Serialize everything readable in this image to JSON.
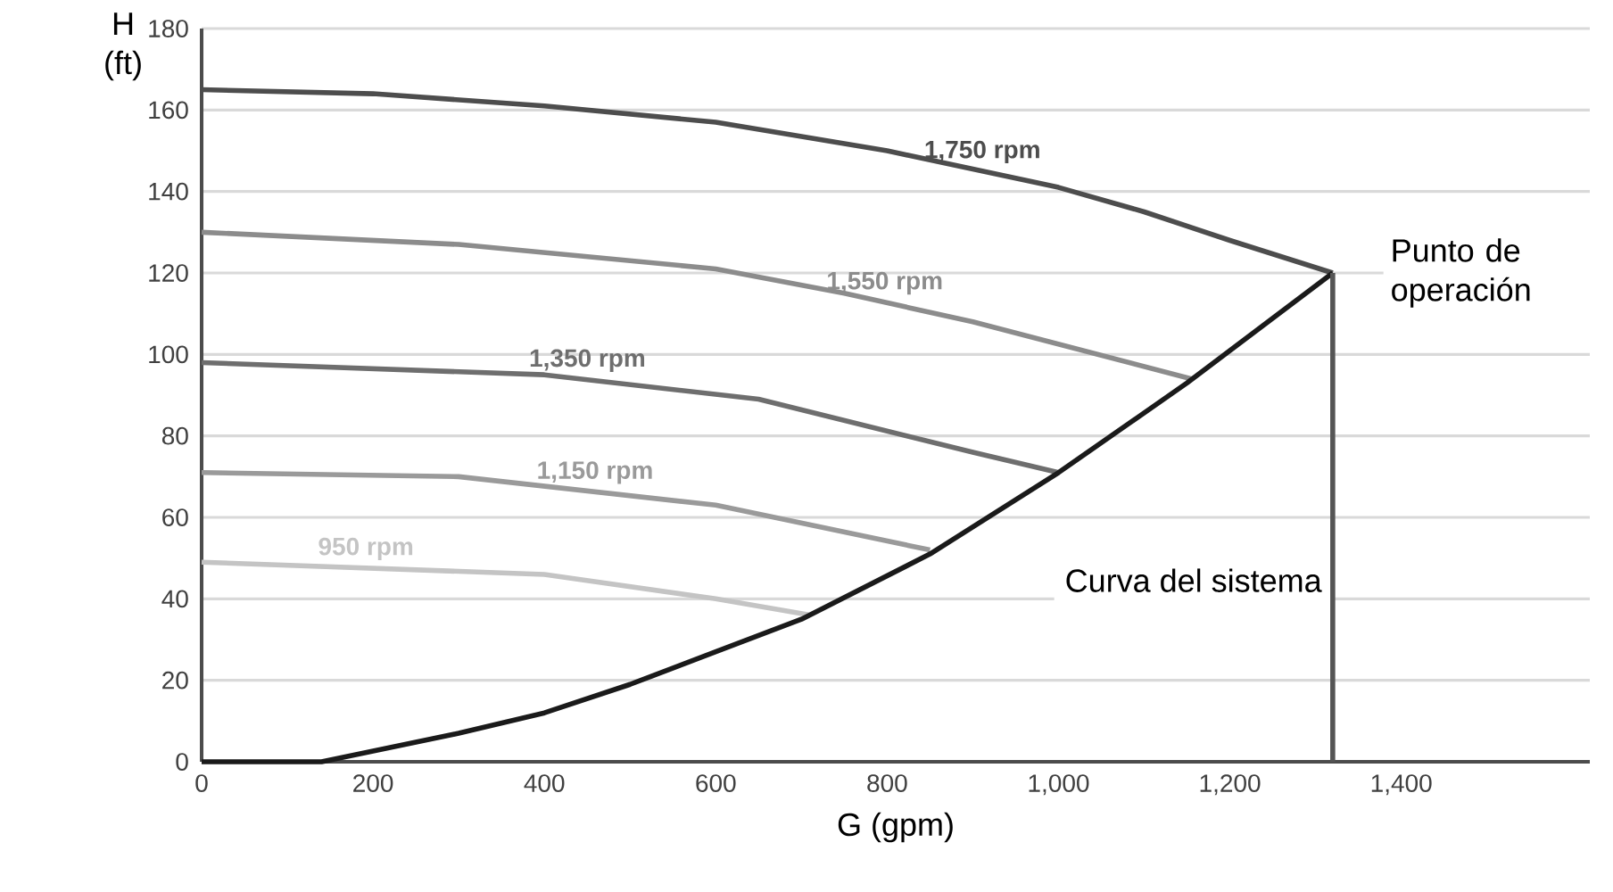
{
  "chart_data": {
    "type": "line",
    "xlabel": "G (gpm)",
    "ylabel": "H (ft)",
    "xlim": [
      0,
      1620
    ],
    "ylim": [
      0,
      180
    ],
    "xticks": [
      0,
      200,
      400,
      600,
      800,
      {
        "value": 1000,
        "label": "1,000"
      },
      {
        "value": 1200,
        "label": "1,200"
      },
      {
        "value": 1400,
        "label": "1,400"
      }
    ],
    "yticks": [
      0,
      20,
      40,
      60,
      80,
      100,
      120,
      140,
      160,
      180
    ],
    "grid": "y",
    "series": [
      {
        "name": "1,750 rpm",
        "color": "#4d4d4d",
        "x": [
          0,
          200,
          400,
          600,
          800,
          1000,
          1100,
          1200,
          1320
        ],
        "values": [
          165,
          164,
          161,
          157,
          150,
          141,
          135,
          128,
          120
        ]
      },
      {
        "name": "1,550 rpm",
        "color": "#8c8c8c",
        "x": [
          0,
          300,
          600,
          750,
          900,
          1155
        ],
        "values": [
          130,
          127,
          121,
          115,
          108,
          94
        ]
      },
      {
        "name": "1,350 rpm",
        "color": "#6e6e6e",
        "x": [
          0,
          400,
          650,
          900,
          1000
        ],
        "values": [
          98,
          95,
          89,
          76,
          71
        ]
      },
      {
        "name": "1,150 rpm",
        "color": "#9a9a9a",
        "x": [
          0,
          300,
          600,
          850
        ],
        "values": [
          71,
          70,
          63,
          52
        ]
      },
      {
        "name": "950 rpm",
        "color": "#c4c4c4",
        "x": [
          0,
          400,
          600,
          710
        ],
        "values": [
          49,
          46,
          40,
          36
        ]
      },
      {
        "name": "Curva del sistema",
        "color": "#1a1a1a",
        "x": [
          0,
          140,
          300,
          400,
          500,
          600,
          700,
          850,
          1000,
          1150,
          1320
        ],
        "values": [
          0,
          0,
          7,
          12,
          19,
          27,
          35,
          51,
          71,
          93,
          120
        ]
      },
      {
        "color": "#555555",
        "x": [
          1320,
          1320
        ],
        "values": [
          0,
          120
        ]
      }
    ],
    "annotations": [
      {
        "text": "Punto de operación",
        "x": 1320,
        "y": 120
      }
    ]
  }
}
